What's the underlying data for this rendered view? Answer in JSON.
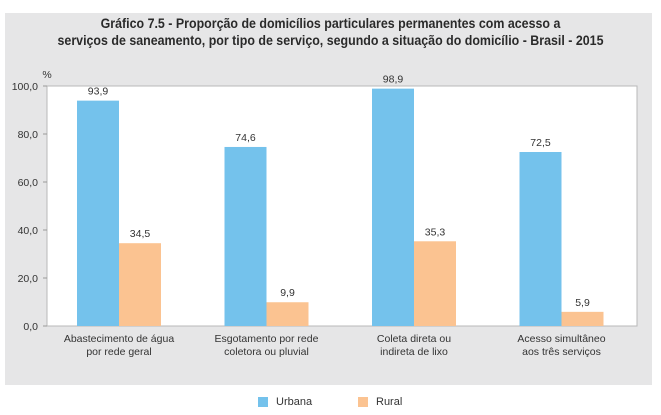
{
  "chart_data": {
    "type": "bar",
    "title": "Gráfico 7.5 - Proporção de domicílios particulares permanentes com acesso a serviços de saneamento, por tipo de serviço, segundo a situação do domicílio - Brasil - 2015",
    "title_lines": [
      "Gráfico 7.5 - Proporção de domicílios particulares permanentes com acesso a",
      "serviços de saneamento, por tipo de serviço, segundo a situação do domicílio - Brasil - 2015"
    ],
    "xlabel": "",
    "ylabel": "%",
    "ylim": [
      0,
      100
    ],
    "yticks": [
      0,
      20,
      40,
      60,
      80,
      100
    ],
    "ytick_labels": [
      "0,0",
      "20,0",
      "40,0",
      "60,0",
      "80,0",
      "100,0"
    ],
    "grid": false,
    "legend_position": "bottom-center",
    "categories": [
      [
        "Abastecimento de água",
        "por rede geral"
      ],
      [
        "Esgotamento por rede",
        "coletora ou pluvial"
      ],
      [
        "Coleta direta ou",
        "indireta de lixo"
      ],
      [
        "Acesso simultâneo",
        "aos três serviços"
      ]
    ],
    "series": [
      {
        "name": "Urbana",
        "color": "#74c2ec",
        "values": [
          93.9,
          74.6,
          98.9,
          72.5
        ],
        "labels": [
          "93,9",
          "74,6",
          "98,9",
          "72,5"
        ]
      },
      {
        "name": "Rural",
        "color": "#fbc391",
        "values": [
          34.5,
          9.9,
          35.3,
          5.9
        ],
        "labels": [
          "34,5",
          "9,9",
          "35,3",
          "5,9"
        ]
      }
    ]
  },
  "legend": {
    "items": [
      {
        "label": "Urbana",
        "color": "#74c2ec"
      },
      {
        "label": "Rural",
        "color": "#fbc391"
      }
    ]
  }
}
